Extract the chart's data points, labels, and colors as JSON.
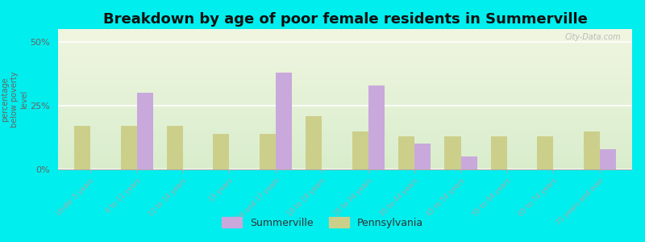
{
  "categories": [
    "Under 5 years",
    "6 to 11 years",
    "12 to 14 years",
    "15 years",
    "16 and 17 years",
    "18 to 24 years",
    "25 to 34 years",
    "35 to 44 years",
    "45 to 54 years",
    "55 to 64 years",
    "65 to 74 years",
    "75 years and over"
  ],
  "summerville": [
    0,
    30,
    0,
    0,
    38,
    0,
    33,
    10,
    5,
    0,
    0,
    8
  ],
  "pennsylvania": [
    17,
    17,
    17,
    14,
    14,
    21,
    15,
    13,
    13,
    13,
    13,
    15
  ],
  "summerville_color": "#c9a8dc",
  "pennsylvania_color": "#cccf8a",
  "title": "Breakdown by age of poor female residents in Summerville",
  "ylabel": "percentage\nbelow poverty\nlevel",
  "ylim": [
    0,
    55
  ],
  "yticks": [
    0,
    25,
    50
  ],
  "ytick_labels": [
    "0%",
    "25%",
    "50%"
  ],
  "bg_color_top": "#f0f5e0",
  "bg_color_bottom": "#d8edcc",
  "outer_bg": "#00eeee",
  "bar_width": 0.35,
  "title_fontsize": 13,
  "legend_summerville": "Summerville",
  "legend_pennsylvania": "Pennsylvania"
}
